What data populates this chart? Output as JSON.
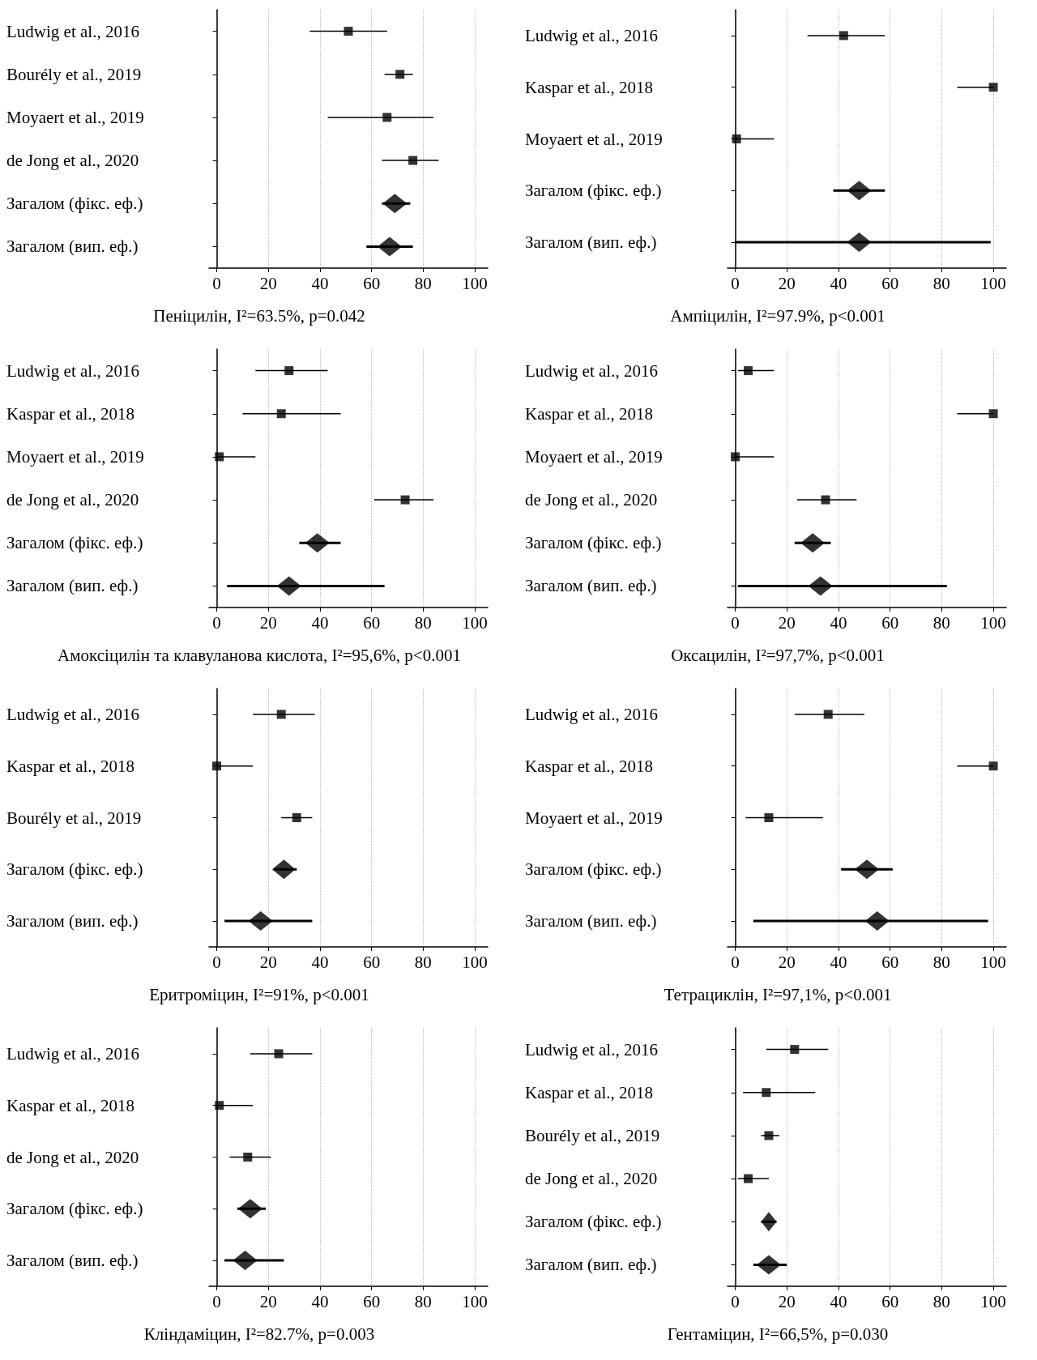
{
  "chart_data": [
    {
      "type": "scatter",
      "orientation": "horizontal",
      "xlabel": "Пеніцилін, I²=63.5%, p=0.042",
      "categories": [
        "Ludwig et al., 2016",
        "Bourély et al., 2019",
        "Moyaert et al., 2019",
        "de Jong et al., 2020",
        "Загалом (фікс. еф.)",
        "Загалом (вип. еф.)"
      ],
      "xlim": [
        -3,
        105
      ],
      "xticks": [
        0,
        20,
        40,
        60,
        80,
        100
      ],
      "grid": "x",
      "series": [
        {
          "marker": "square",
          "color": "#000000",
          "values": [
            51,
            71,
            66,
            76,
            null,
            null
          ],
          "errors": [
            [
              36,
              66
            ],
            [
              65,
              76
            ],
            [
              43,
              84
            ],
            [
              64,
              86
            ],
            null,
            null
          ]
        },
        {
          "marker": "diamond",
          "color": "#000000",
          "values": [
            null,
            null,
            null,
            null,
            69,
            67
          ],
          "errors": [
            null,
            null,
            null,
            null,
            [
              64,
              75
            ],
            [
              58,
              76
            ]
          ]
        }
      ]
    },
    {
      "type": "scatter",
      "orientation": "horizontal",
      "xlabel": "Ампіцилін, I²=97.9%, p<0.001",
      "categories": [
        "Ludwig et al., 2016",
        "Kaspar et al., 2018",
        "Moyaert et al., 2019",
        "Загалом (фікс. еф.)",
        "Загалом (вип. еф.)"
      ],
      "xlim": [
        -3,
        105
      ],
      "xticks": [
        0,
        20,
        40,
        60,
        80,
        100
      ],
      "grid": "x",
      "series": [
        {
          "marker": "square",
          "color": "#000000",
          "values": [
            42,
            100,
            0.5,
            null,
            null
          ],
          "errors": [
            [
              28,
              58
            ],
            [
              86,
              100
            ],
            [
              0,
              15
            ],
            null,
            null
          ]
        },
        {
          "marker": "diamond",
          "color": "#000000",
          "values": [
            null,
            null,
            null,
            48,
            48
          ],
          "errors": [
            null,
            null,
            null,
            [
              38,
              58
            ],
            [
              0,
              99
            ]
          ]
        }
      ]
    },
    {
      "type": "scatter",
      "orientation": "horizontal",
      "xlabel": "Амоксіцилін та клавуланова кислота, I²=95,6%, p<0.001",
      "categories": [
        "Ludwig et al., 2016",
        "Kaspar et al., 2018",
        "Moyaert et al., 2019",
        "de Jong et al., 2020",
        "Загалом (фікс. еф.)",
        "Загалом (вип. еф.)"
      ],
      "xlim": [
        -3,
        105
      ],
      "xticks": [
        0,
        20,
        40,
        60,
        80,
        100
      ],
      "grid": "x",
      "series": [
        {
          "marker": "square",
          "color": "#000000",
          "values": [
            28,
            25,
            1,
            73,
            null,
            null
          ],
          "errors": [
            [
              15,
              43
            ],
            [
              10,
              48
            ],
            [
              0,
              15
            ],
            [
              61,
              84
            ],
            null,
            null
          ]
        },
        {
          "marker": "diamond",
          "color": "#000000",
          "values": [
            null,
            null,
            null,
            null,
            39,
            28
          ],
          "errors": [
            null,
            null,
            null,
            null,
            [
              32,
              48
            ],
            [
              4,
              65
            ]
          ]
        }
      ]
    },
    {
      "type": "scatter",
      "orientation": "horizontal",
      "xlabel": "Оксацилін, I²=97,7%, p<0.001",
      "categories": [
        "Ludwig et al., 2016",
        "Kaspar et al., 2018",
        "Moyaert et al., 2019",
        "de Jong et al., 2020",
        "Загалом (фікс. еф.)",
        "Загалом (вип. еф.)"
      ],
      "xlim": [
        -3,
        105
      ],
      "xticks": [
        0,
        20,
        40,
        60,
        80,
        100
      ],
      "grid": "x",
      "series": [
        {
          "marker": "square",
          "color": "#000000",
          "values": [
            5,
            100,
            0,
            35,
            null,
            null
          ],
          "errors": [
            [
              1,
              15
            ],
            [
              86,
              100
            ],
            [
              0,
              15
            ],
            [
              24,
              47
            ],
            null,
            null
          ]
        },
        {
          "marker": "diamond",
          "color": "#000000",
          "values": [
            null,
            null,
            null,
            null,
            30,
            33
          ],
          "errors": [
            null,
            null,
            null,
            null,
            [
              23,
              37
            ],
            [
              1,
              82
            ]
          ]
        }
      ]
    },
    {
      "type": "scatter",
      "orientation": "horizontal",
      "xlabel": "Еритроміцин, I²=91%, p<0.001",
      "categories": [
        "Ludwig et al., 2016",
        "Kaspar et al., 2018",
        "Bourély et al., 2019",
        "Загалом (фікс. еф.)",
        "Загалом (вип. еф.)"
      ],
      "xlim": [
        -3,
        105
      ],
      "xticks": [
        0,
        20,
        40,
        60,
        80,
        100
      ],
      "grid": "x",
      "series": [
        {
          "marker": "square",
          "color": "#000000",
          "values": [
            25,
            0,
            31,
            null,
            null
          ],
          "errors": [
            [
              14,
              38
            ],
            [
              0,
              14
            ],
            [
              25,
              37
            ],
            null,
            null
          ]
        },
        {
          "marker": "diamond",
          "color": "#000000",
          "values": [
            null,
            null,
            null,
            26,
            17
          ],
          "errors": [
            null,
            null,
            null,
            [
              22,
              31
            ],
            [
              3,
              37
            ]
          ]
        }
      ]
    },
    {
      "type": "scatter",
      "orientation": "horizontal",
      "xlabel": "Тетрациклін, I²=97,1%, p<0.001",
      "categories": [
        "Ludwig et al., 2016",
        "Kaspar et al., 2018",
        "Moyaert et al., 2019",
        "Загалом (фікс. еф.)",
        "Загалом (вип. еф.)"
      ],
      "xlim": [
        -3,
        105
      ],
      "xticks": [
        0,
        20,
        40,
        60,
        80,
        100
      ],
      "grid": "x",
      "series": [
        {
          "marker": "square",
          "color": "#000000",
          "values": [
            36,
            100,
            13,
            null,
            null
          ],
          "errors": [
            [
              23,
              50
            ],
            [
              86,
              100
            ],
            [
              4,
              34
            ],
            null,
            null
          ]
        },
        {
          "marker": "diamond",
          "color": "#000000",
          "values": [
            null,
            null,
            null,
            51,
            55
          ],
          "errors": [
            null,
            null,
            null,
            [
              41,
              61
            ],
            [
              7,
              98
            ]
          ]
        }
      ]
    },
    {
      "type": "scatter",
      "orientation": "horizontal",
      "xlabel": "Кліндаміцин, I²=82.7%, p=0.003",
      "categories": [
        "Ludwig et al., 2016",
        "Kaspar et al., 2018",
        "de Jong et al., 2020",
        "Загалом (фікс. еф.)",
        "Загалом (вип. еф.)"
      ],
      "xlim": [
        -3,
        105
      ],
      "xticks": [
        0,
        20,
        40,
        60,
        80,
        100
      ],
      "grid": "x",
      "series": [
        {
          "marker": "square",
          "color": "#000000",
          "values": [
            24,
            1,
            12,
            null,
            null
          ],
          "errors": [
            [
              13,
              37
            ],
            [
              0,
              14
            ],
            [
              5,
              21
            ],
            null,
            null
          ]
        },
        {
          "marker": "diamond",
          "color": "#000000",
          "values": [
            null,
            null,
            null,
            13,
            11
          ],
          "errors": [
            null,
            null,
            null,
            [
              8,
              19
            ],
            [
              3,
              26
            ]
          ]
        }
      ]
    },
    {
      "type": "scatter",
      "orientation": "horizontal",
      "xlabel": "Гентаміцин, I²=66,5%, p=0.030",
      "categories": [
        "Ludwig et al., 2016",
        "Kaspar et al., 2018",
        "Bourély et al., 2019",
        "de Jong et al., 2020",
        "Загалом (фікс. еф.)",
        "Загалом (вип. еф.)"
      ],
      "xlim": [
        -3,
        105
      ],
      "xticks": [
        0,
        20,
        40,
        60,
        80,
        100
      ],
      "grid": "x",
      "series": [
        {
          "marker": "square",
          "color": "#000000",
          "values": [
            23,
            12,
            13,
            5,
            null,
            null
          ],
          "errors": [
            [
              12,
              36
            ],
            [
              3,
              31
            ],
            [
              10,
              17
            ],
            [
              1,
              13
            ],
            null,
            null
          ]
        },
        {
          "marker": "diamond",
          "color": "#000000",
          "values": [
            null,
            null,
            null,
            null,
            13,
            13
          ],
          "errors": [
            null,
            null,
            null,
            null,
            [
              10,
              16
            ],
            [
              7,
              20
            ]
          ]
        }
      ]
    }
  ]
}
